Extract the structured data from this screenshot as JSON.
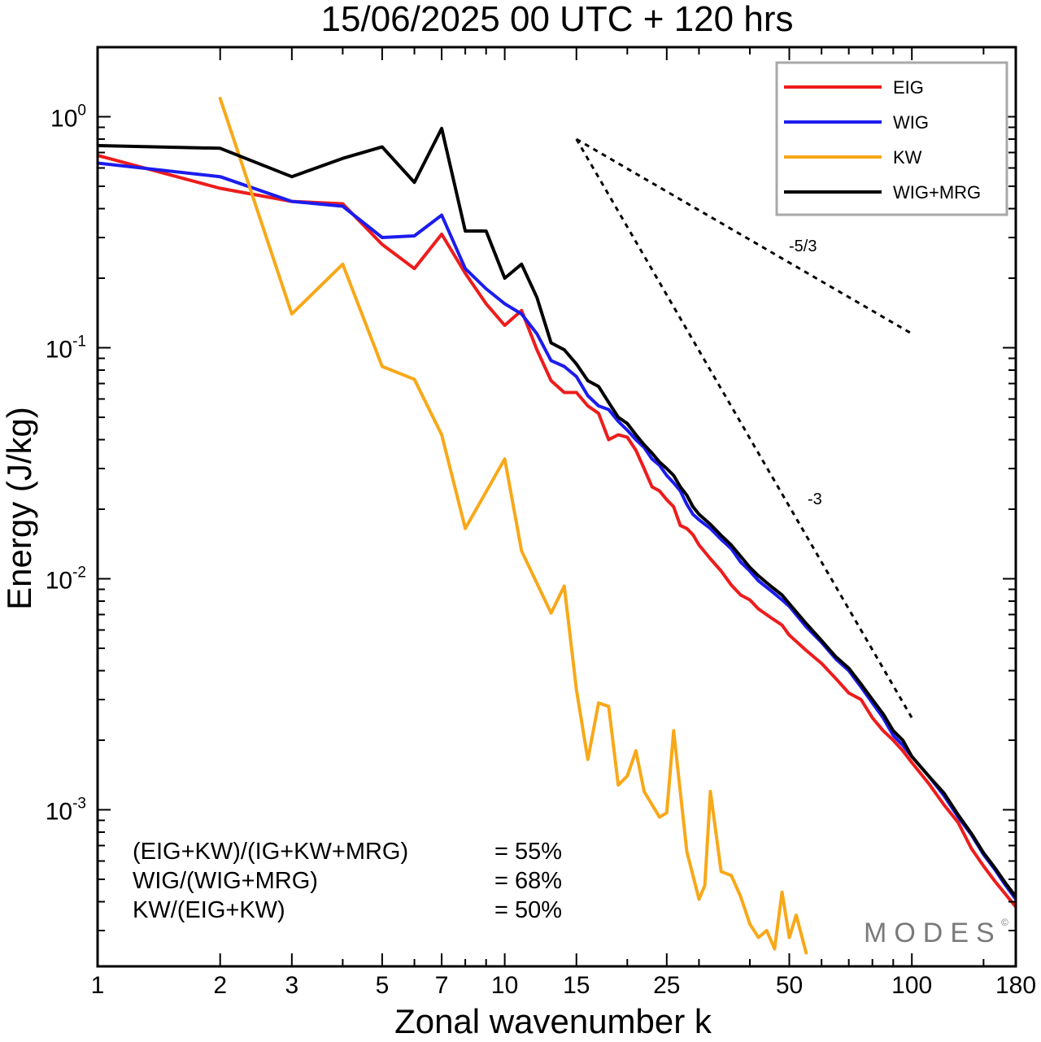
{
  "chart_data": {
    "type": "line",
    "title": "15/06/2025  00 UTC  + 120 hrs",
    "xlabel": "Zonal wavenumber k",
    "ylabel": "Energy (J/kg)",
    "xscale": "log",
    "yscale": "log",
    "xlim": [
      1,
      180
    ],
    "ylim": [
      0.00021,
      2.0
    ],
    "xticks": [
      1,
      2,
      3,
      5,
      7,
      10,
      15,
      25,
      50,
      100,
      180
    ],
    "xtick_labels": [
      "1",
      "2",
      "3",
      "5",
      "7",
      "10",
      "15",
      "25",
      "50",
      "100",
      "180"
    ],
    "yticks": [
      {
        "value": 1.0,
        "base": "10",
        "exp": "0"
      },
      {
        "value": 0.1,
        "base": "10",
        "exp": "-1"
      },
      {
        "value": 0.01,
        "base": "10",
        "exp": "-2"
      },
      {
        "value": 0.001,
        "base": "10",
        "exp": "-3"
      }
    ],
    "legend_position": "top-right",
    "grid": false,
    "series": [
      {
        "name": "EIG",
        "color": "#ee1c1c",
        "x": [
          1,
          2,
          3,
          4,
          5,
          6,
          7,
          8,
          9,
          10,
          11,
          12,
          13,
          14,
          15,
          16,
          17,
          18,
          19,
          20,
          21,
          22,
          23,
          24,
          25,
          26,
          27,
          28,
          29,
          30,
          32,
          34,
          36,
          38,
          40,
          42,
          45,
          48,
          50,
          55,
          60,
          65,
          70,
          75,
          80,
          85,
          90,
          95,
          100,
          110,
          120,
          130,
          140,
          150,
          160,
          170,
          180
        ],
        "y": [
          0.68,
          0.49,
          0.43,
          0.42,
          0.28,
          0.22,
          0.31,
          0.21,
          0.155,
          0.125,
          0.145,
          0.098,
          0.072,
          0.064,
          0.064,
          0.056,
          0.052,
          0.04,
          0.042,
          0.041,
          0.036,
          0.03,
          0.025,
          0.024,
          0.022,
          0.0205,
          0.017,
          0.0165,
          0.0155,
          0.014,
          0.0122,
          0.0108,
          0.0094,
          0.0085,
          0.0081,
          0.0074,
          0.0068,
          0.0063,
          0.0057,
          0.0049,
          0.0043,
          0.0037,
          0.0032,
          0.003,
          0.0025,
          0.0022,
          0.002,
          0.0018,
          0.0016,
          0.0013,
          0.00105,
          0.00088,
          0.00068,
          0.00057,
          0.00049,
          0.00043,
          0.00038
        ]
      },
      {
        "name": "WIG",
        "color": "#1c1cee",
        "x": [
          1,
          2,
          3,
          4,
          5,
          6,
          7,
          8,
          9,
          10,
          11,
          12,
          13,
          14,
          15,
          16,
          17,
          18,
          19,
          20,
          21,
          22,
          23,
          24,
          25,
          26,
          27,
          28,
          29,
          30,
          32,
          34,
          36,
          38,
          40,
          42,
          45,
          48,
          50,
          55,
          60,
          65,
          70,
          75,
          80,
          85,
          90,
          95,
          100,
          110,
          120,
          130,
          140,
          150,
          160,
          170,
          180
        ],
        "y": [
          0.63,
          0.55,
          0.43,
          0.41,
          0.3,
          0.305,
          0.375,
          0.22,
          0.18,
          0.155,
          0.14,
          0.115,
          0.088,
          0.083,
          0.075,
          0.062,
          0.056,
          0.054,
          0.048,
          0.044,
          0.04,
          0.037,
          0.033,
          0.031,
          0.028,
          0.026,
          0.024,
          0.021,
          0.019,
          0.018,
          0.0165,
          0.0148,
          0.0135,
          0.0118,
          0.0108,
          0.0098,
          0.0089,
          0.0081,
          0.0076,
          0.0062,
          0.0053,
          0.0045,
          0.004,
          0.0034,
          0.0029,
          0.0025,
          0.0021,
          0.0019,
          0.0017,
          0.0014,
          0.00115,
          0.00093,
          0.00078,
          0.00064,
          0.00055,
          0.00047,
          0.00041
        ]
      },
      {
        "name": "KW",
        "color": "#f8a818",
        "x": [
          2,
          3,
          4,
          5,
          6,
          7,
          8,
          10,
          11,
          13,
          14,
          15,
          16,
          17,
          18,
          19,
          20,
          21,
          22,
          24,
          25,
          26,
          28,
          30,
          31,
          32,
          34,
          36,
          38,
          40,
          42,
          44,
          46,
          48,
          50,
          52,
          55
        ],
        "y": [
          1.2,
          0.14,
          0.23,
          0.083,
          0.073,
          0.042,
          0.0165,
          0.033,
          0.0132,
          0.0071,
          0.0093,
          0.0033,
          0.00165,
          0.0029,
          0.0028,
          0.00128,
          0.0014,
          0.0018,
          0.0012,
          0.00093,
          0.00097,
          0.0022,
          0.00066,
          0.00041,
          0.00047,
          0.0012,
          0.00054,
          0.00052,
          0.00042,
          0.00032,
          0.00028,
          0.0003,
          0.00025,
          0.00044,
          0.00028,
          0.00035,
          0.00024
        ]
      },
      {
        "name": "WIG+MRG",
        "color": "#000000",
        "x": [
          1,
          2,
          3,
          4,
          5,
          6,
          7,
          8,
          9,
          10,
          11,
          12,
          13,
          14,
          15,
          16,
          17,
          18,
          19,
          20,
          21,
          22,
          23,
          24,
          25,
          26,
          27,
          28,
          29,
          30,
          32,
          34,
          36,
          38,
          40,
          42,
          45,
          48,
          50,
          55,
          60,
          65,
          70,
          75,
          80,
          85,
          90,
          95,
          100,
          110,
          120,
          130,
          140,
          150,
          160,
          170,
          180
        ],
        "y": [
          0.75,
          0.73,
          0.55,
          0.66,
          0.74,
          0.52,
          0.89,
          0.32,
          0.32,
          0.2,
          0.23,
          0.165,
          0.105,
          0.098,
          0.085,
          0.072,
          0.068,
          0.058,
          0.05,
          0.047,
          0.042,
          0.038,
          0.035,
          0.032,
          0.03,
          0.028,
          0.025,
          0.023,
          0.0205,
          0.019,
          0.0172,
          0.0154,
          0.014,
          0.0125,
          0.0112,
          0.0103,
          0.0093,
          0.0085,
          0.0078,
          0.0064,
          0.0054,
          0.0046,
          0.0041,
          0.0035,
          0.003,
          0.0026,
          0.0022,
          0.002,
          0.0017,
          0.0014,
          0.00118,
          0.00095,
          0.00079,
          0.00065,
          0.00056,
          0.00048,
          0.00042
        ]
      }
    ],
    "reference_lines": [
      {
        "label": "-5/3",
        "x": [
          15,
          100
        ],
        "y": [
          0.8,
          0.115
        ]
      },
      {
        "label": "-3",
        "x": [
          15,
          100
        ],
        "y": [
          0.8,
          0.0025
        ]
      }
    ],
    "ratios": [
      {
        "label": "(EIG+KW)/(IG+KW+MRG)",
        "value": "= 55%"
      },
      {
        "label": "WIG/(WIG+MRG)",
        "value": "= 68%"
      },
      {
        "label": "KW/(EIG+KW)",
        "value": "= 50%"
      }
    ],
    "watermark": "MODES",
    "watermark_mark": "©"
  }
}
